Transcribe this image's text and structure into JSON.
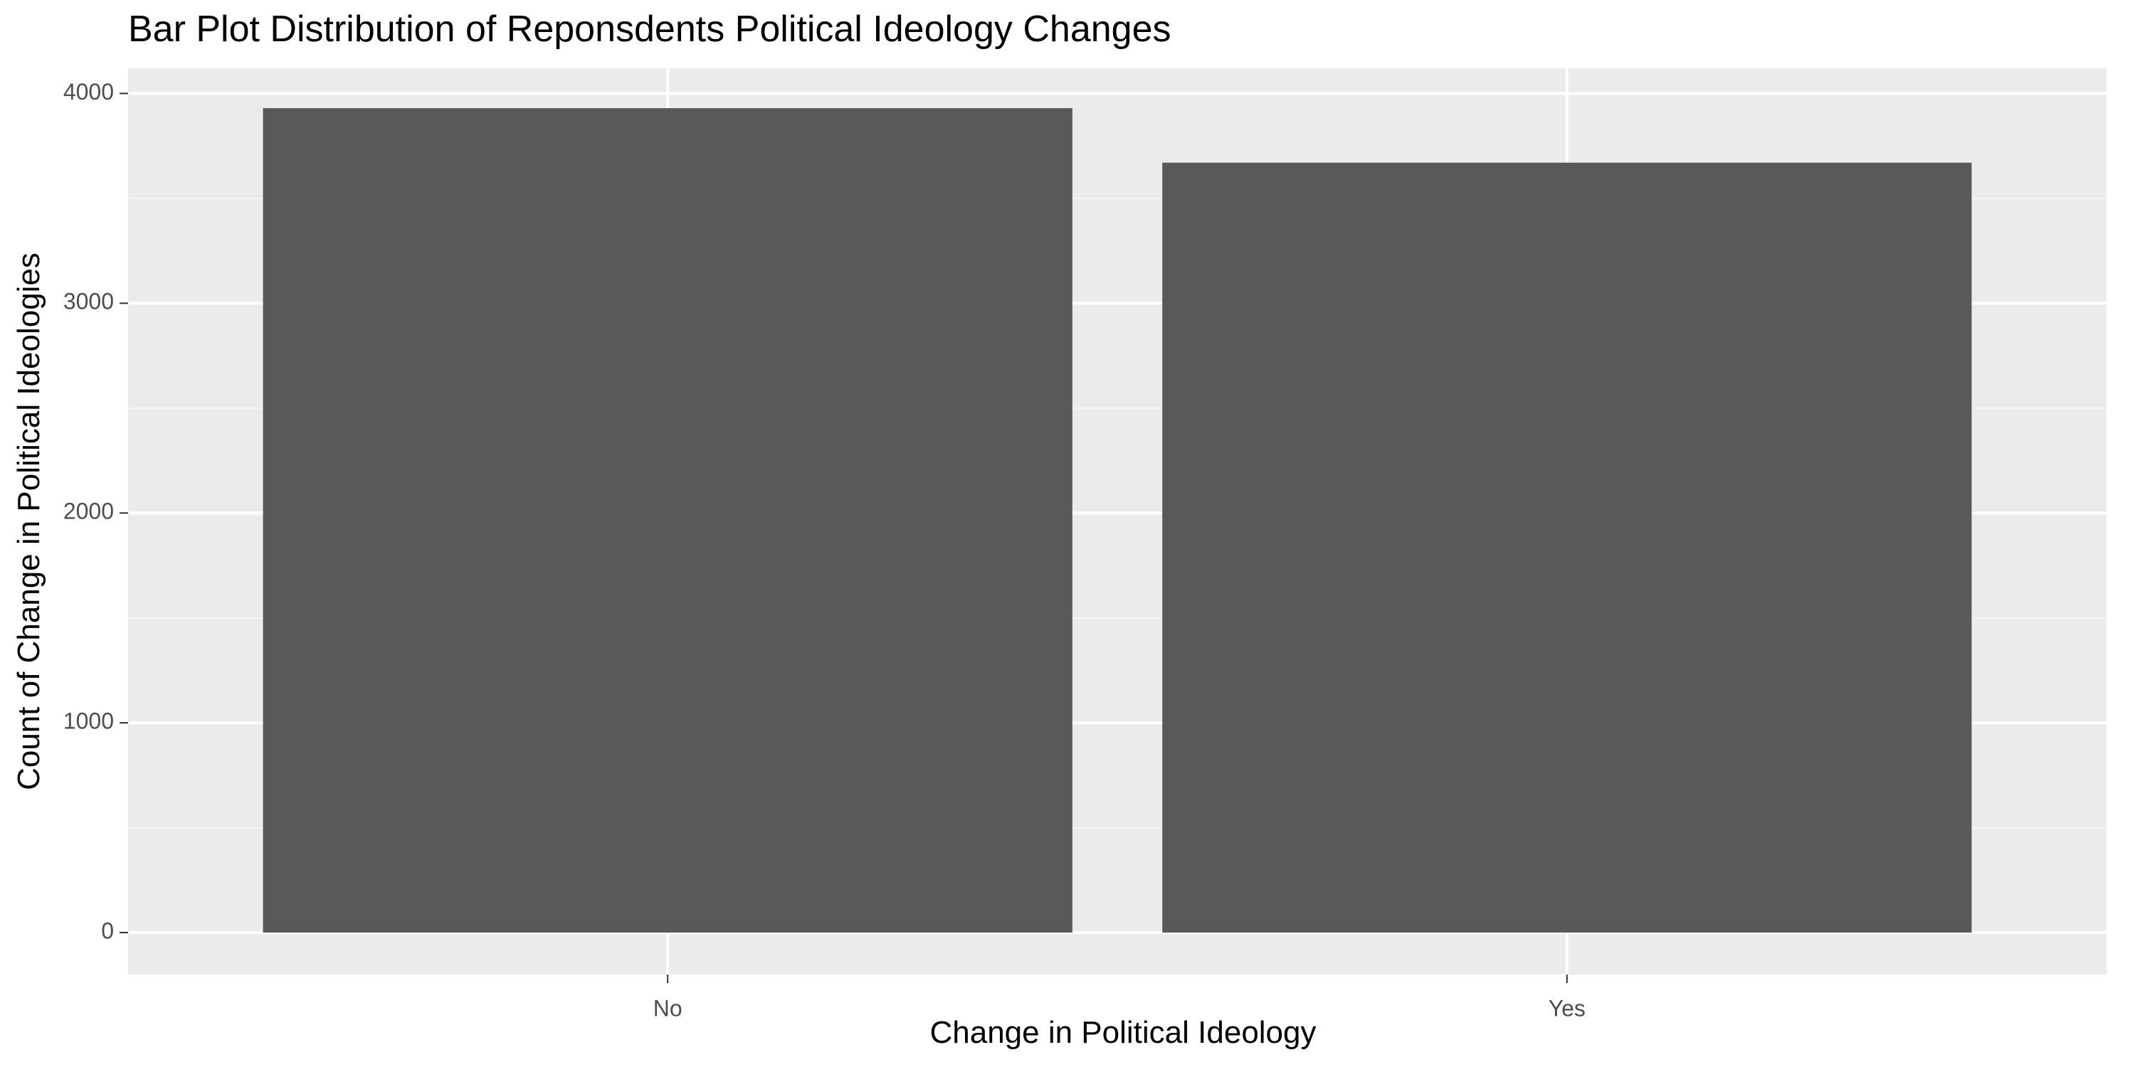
{
  "chart_data": {
    "type": "bar",
    "title": "Bar Plot Distribution of Reponsdents Political Ideology Changes",
    "xlabel": "Change in Political Ideology",
    "ylabel": "Count of Change in Political Ideologies",
    "categories": [
      "No",
      "Yes"
    ],
    "values": [
      3930,
      3670
    ],
    "ylim": [
      -200,
      4120
    ],
    "yticks": [
      0,
      1000,
      2000,
      3000,
      4000
    ],
    "ytick_labels": [
      "0",
      "1000",
      "2000",
      "3000",
      "4000"
    ],
    "grid": true,
    "legend": "none"
  },
  "colors": {
    "panel_background": "#ebebeb",
    "grid_major": "#ffffff",
    "grid_minor": "#f5f5f5",
    "bar_fill": "#595959",
    "tick_color": "#333333"
  }
}
